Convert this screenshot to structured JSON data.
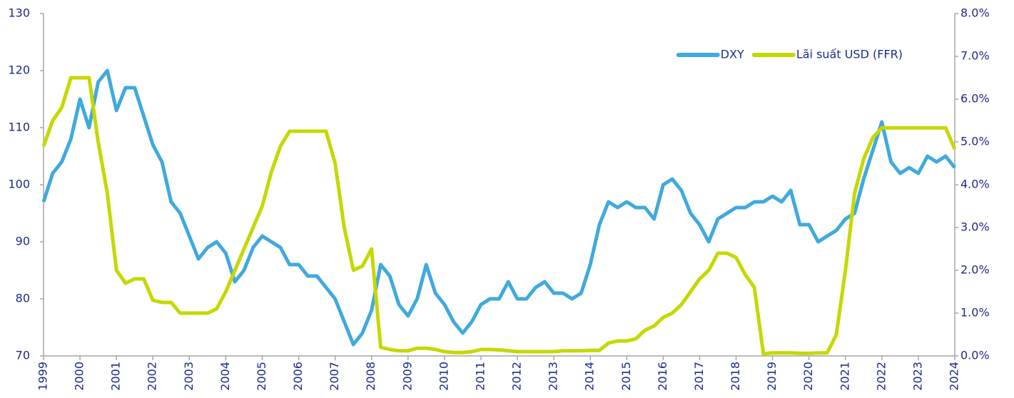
{
  "chart_data": {
    "type": "line",
    "legend": "upper right",
    "xlim": [
      1999,
      2024
    ],
    "xticks": [
      1999,
      2000,
      2001,
      2002,
      2003,
      2004,
      2005,
      2006,
      2007,
      2008,
      2009,
      2010,
      2011,
      2012,
      2013,
      2014,
      2015,
      2016,
      2017,
      2018,
      2019,
      2020,
      2021,
      2022,
      2023,
      2024
    ],
    "ylim": [
      70,
      130
    ],
    "yticks": [
      70,
      80,
      90,
      100,
      110,
      120,
      130
    ],
    "y2lim": [
      0,
      8
    ],
    "y2ticks": [
      {
        "value": 0,
        "label": "0.0%"
      },
      {
        "value": 1,
        "label": "1.0%"
      },
      {
        "value": 2,
        "label": "2.0%"
      },
      {
        "value": 3,
        "label": "3.0%"
      },
      {
        "value": 4,
        "label": "4.0%"
      },
      {
        "value": 5,
        "label": "5.0%"
      },
      {
        "value": 6,
        "label": "6.0%"
      },
      {
        "value": 7,
        "label": "7.0%"
      },
      {
        "value": 8,
        "label": "8.0%"
      }
    ],
    "x": [
      1999,
      1999.25,
      1999.5,
      1999.75,
      2000,
      2000.25,
      2000.5,
      2000.75,
      2001,
      2001.25,
      2001.5,
      2001.75,
      2002,
      2002.25,
      2002.5,
      2002.75,
      2003,
      2003.25,
      2003.5,
      2003.75,
      2004,
      2004.25,
      2004.5,
      2004.75,
      2005,
      2005.25,
      2005.5,
      2005.75,
      2006,
      2006.25,
      2006.5,
      2006.75,
      2007,
      2007.25,
      2007.5,
      2007.75,
      2008,
      2008.25,
      2008.5,
      2008.75,
      2009,
      2009.25,
      2009.5,
      2009.75,
      2010,
      2010.25,
      2010.5,
      2010.75,
      2011,
      2011.25,
      2011.5,
      2011.75,
      2012,
      2012.25,
      2012.5,
      2012.75,
      2013,
      2013.25,
      2013.5,
      2013.75,
      2014,
      2014.25,
      2014.5,
      2014.75,
      2015,
      2015.25,
      2015.5,
      2015.75,
      2016,
      2016.25,
      2016.5,
      2016.75,
      2017,
      2017.25,
      2017.5,
      2017.75,
      2018,
      2018.25,
      2018.5,
      2018.75,
      2019,
      2019.25,
      2019.5,
      2019.75,
      2020,
      2020.25,
      2020.5,
      2020.75,
      2021,
      2021.25,
      2021.5,
      2021.75,
      2022,
      2022.25,
      2022.5,
      2022.75,
      2023,
      2023.25,
      2023.5,
      2023.75,
      2024
    ],
    "series": [
      {
        "name": "DXY",
        "color": "#40a9de",
        "values": [
          97,
          102,
          104,
          108,
          115,
          110,
          118,
          120,
          113,
          117,
          117,
          112,
          107,
          104,
          97,
          95,
          91,
          87,
          89,
          90,
          88,
          83,
          85,
          89,
          91,
          90,
          89,
          86,
          86,
          84,
          84,
          82,
          80,
          76,
          72,
          74,
          78,
          86,
          84,
          79,
          77,
          80,
          86,
          81,
          79,
          76,
          74,
          76,
          79,
          80,
          80,
          83,
          80,
          80,
          82,
          83,
          81,
          81,
          80,
          81,
          86,
          93,
          97,
          96,
          97,
          96,
          96,
          94,
          100,
          101,
          99,
          95,
          93,
          90,
          94,
          95,
          96,
          96,
          97,
          97,
          98,
          97,
          99,
          93,
          93,
          90,
          91,
          92,
          94,
          95,
          101,
          106,
          111,
          104,
          102,
          103,
          102,
          105,
          104,
          105,
          103
        ]
      },
      {
        "name": "Lãi suất USD (FFR)",
        "color": "#c5d800",
        "axis": "y2",
        "values": [
          4.9,
          5.5,
          5.8,
          6.5,
          6.5,
          6.5,
          5.0,
          3.8,
          2.0,
          1.7,
          1.8,
          1.8,
          1.3,
          1.25,
          1.25,
          1.0,
          1.0,
          1.0,
          1.0,
          1.1,
          1.5,
          2.0,
          2.5,
          3.0,
          3.5,
          4.3,
          4.9,
          5.25,
          5.25,
          5.25,
          5.25,
          5.25,
          4.5,
          3.0,
          2.0,
          2.1,
          2.5,
          0.2,
          0.15,
          0.12,
          0.12,
          0.18,
          0.18,
          0.15,
          0.1,
          0.08,
          0.08,
          0.1,
          0.15,
          0.15,
          0.14,
          0.12,
          0.1,
          0.1,
          0.1,
          0.1,
          0.1,
          0.12,
          0.12,
          0.12,
          0.13,
          0.13,
          0.3,
          0.35,
          0.35,
          0.4,
          0.6,
          0.7,
          0.9,
          1.0,
          1.2,
          1.5,
          1.8,
          2.0,
          2.4,
          2.4,
          2.3,
          1.9,
          1.6,
          0.05,
          0.07,
          0.07,
          0.07,
          0.06,
          0.06,
          0.07,
          0.07,
          0.5,
          2.0,
          3.8,
          4.6,
          5.1,
          5.33,
          5.33,
          5.33,
          5.33,
          5.33,
          5.33,
          5.33,
          5.33,
          4.83
        ]
      }
    ]
  }
}
